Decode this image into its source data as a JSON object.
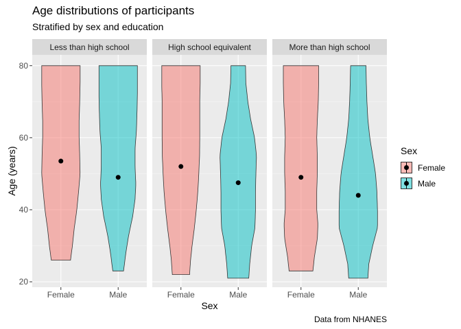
{
  "chart_data": {
    "type": "violin",
    "title": "Age distributions of participants",
    "subtitle": "Stratified by sex and education",
    "caption": "Data from NHANES",
    "xlabel": "Sex",
    "ylabel": "Age (years)",
    "ylim": [
      18.5,
      83
    ],
    "yticks": [
      20,
      40,
      60,
      80
    ],
    "categories": [
      "Female",
      "Male"
    ],
    "grid": true,
    "legend": {
      "title": "Sex",
      "position": "right",
      "entries": [
        {
          "label": "Female",
          "color": "#F8766D"
        },
        {
          "label": "Male",
          "color": "#00BFC4"
        }
      ]
    },
    "colors": {
      "Female": "#F8766D",
      "Male": "#00BFC4"
    },
    "facets": [
      {
        "label": "Less than high school",
        "groups": [
          {
            "sex": "Female",
            "min": 26,
            "max": 80,
            "mean": 53.5,
            "profile": [
              [
                26,
                0.5
              ],
              [
                30,
                0.6
              ],
              [
                35,
                0.7
              ],
              [
                40,
                0.83
              ],
              [
                45,
                0.92
              ],
              [
                50,
                1.0
              ],
              [
                55,
                0.98
              ],
              [
                60,
                0.95
              ],
              [
                65,
                0.95
              ],
              [
                70,
                0.98
              ],
              [
                75,
                1.0
              ],
              [
                80,
                1.0
              ]
            ]
          },
          {
            "sex": "Male",
            "min": 23,
            "max": 80,
            "mean": 49,
            "profile": [
              [
                23,
                0.28
              ],
              [
                28,
                0.4
              ],
              [
                33,
                0.55
              ],
              [
                38,
                0.75
              ],
              [
                43,
                0.88
              ],
              [
                47,
                0.92
              ],
              [
                52,
                0.88
              ],
              [
                57,
                0.88
              ],
              [
                62,
                0.95
              ],
              [
                67,
                0.98
              ],
              [
                72,
                1.0
              ],
              [
                80,
                1.0
              ]
            ]
          }
        ]
      },
      {
        "label": "High school equivalent",
        "groups": [
          {
            "sex": "Female",
            "min": 22,
            "max": 80,
            "mean": 52,
            "profile": [
              [
                22,
                0.45
              ],
              [
                26,
                0.5
              ],
              [
                30,
                0.58
              ],
              [
                35,
                0.7
              ],
              [
                40,
                0.8
              ],
              [
                45,
                0.88
              ],
              [
                50,
                0.93
              ],
              [
                55,
                0.97
              ],
              [
                60,
                0.98
              ],
              [
                65,
                0.98
              ],
              [
                70,
                0.98
              ],
              [
                75,
                1.0
              ],
              [
                80,
                1.0
              ]
            ]
          },
          {
            "sex": "Male",
            "min": 21,
            "max": 80,
            "mean": 47.5,
            "profile": [
              [
                21,
                0.55
              ],
              [
                25,
                0.6
              ],
              [
                30,
                0.7
              ],
              [
                35,
                0.87
              ],
              [
                40,
                0.9
              ],
              [
                45,
                0.9
              ],
              [
                50,
                0.92
              ],
              [
                55,
                0.95
              ],
              [
                60,
                0.85
              ],
              [
                65,
                0.65
              ],
              [
                70,
                0.5
              ],
              [
                75,
                0.4
              ],
              [
                80,
                0.38
              ]
            ]
          }
        ]
      },
      {
        "label": "More than high school",
        "groups": [
          {
            "sex": "Female",
            "min": 23,
            "max": 80,
            "mean": 49,
            "profile": [
              [
                23,
                0.62
              ],
              [
                27,
                0.7
              ],
              [
                32,
                0.85
              ],
              [
                36,
                0.88
              ],
              [
                40,
                0.82
              ],
              [
                45,
                0.82
              ],
              [
                50,
                0.85
              ],
              [
                55,
                0.85
              ],
              [
                60,
                0.82
              ],
              [
                65,
                0.85
              ],
              [
                70,
                0.9
              ],
              [
                75,
                0.92
              ],
              [
                80,
                0.92
              ]
            ]
          },
          {
            "sex": "Male",
            "min": 21,
            "max": 80,
            "mean": 44,
            "profile": [
              [
                21,
                0.5
              ],
              [
                25,
                0.55
              ],
              [
                30,
                0.75
              ],
              [
                35,
                1.0
              ],
              [
                40,
                1.0
              ],
              [
                45,
                0.97
              ],
              [
                50,
                0.9
              ],
              [
                55,
                0.75
              ],
              [
                60,
                0.6
              ],
              [
                65,
                0.5
              ],
              [
                70,
                0.45
              ],
              [
                75,
                0.42
              ],
              [
                80,
                0.4
              ]
            ]
          }
        ]
      }
    ]
  }
}
